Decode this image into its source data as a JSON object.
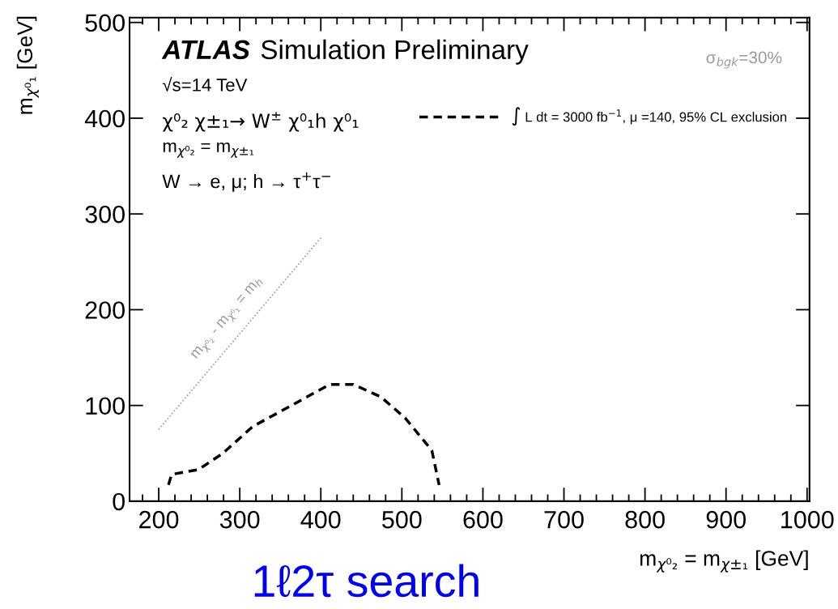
{
  "chart_data": {
    "type": "line",
    "xlabel": "m$_{χ⁰₂}$ = m$_{χ±₁}$ [GeV]",
    "ylabel": "m$_{χ⁰₁}$ [GeV]",
    "xlim": [
      164,
      1003
    ],
    "ylim": [
      0,
      505
    ],
    "xticks": [
      200,
      300,
      400,
      500,
      600,
      700,
      800,
      900,
      1000
    ],
    "yticks": [
      0,
      100,
      200,
      300,
      400,
      500
    ],
    "grid": false,
    "legend": "top right",
    "series": [
      {
        "name": "∫ L dt = 3000 fb$^{−1}$, μ =140, 95% CL exclusion",
        "color": "#000000",
        "line_style": "dashed",
        "x": [
          212,
          216,
          249,
          279,
          316,
          353,
          411,
          440,
          474,
          504,
          537,
          546
        ],
        "values": [
          17,
          28,
          33,
          50,
          78,
          95,
          122,
          122,
          109,
          87,
          53,
          17
        ]
      },
      {
        "color": "#999999",
        "line_style": "dotted",
        "x": [
          200,
          400
        ],
        "values": [
          75,
          275
        ]
      }
    ],
    "annotations": [
      "ATLAS",
      "Simulation Preliminary",
      "σ$_{bgk}$=30%",
      "√s=14 TeV",
      "χ⁰₂ χ±₁→ W$^{±}$ χ⁰₁h χ⁰₁",
      "m$_{χ⁰₂}$ = m$_{χ±₁}$",
      "W → e, μ; h → τ$^{+}$τ$^{−}$",
      "m$_{χ⁰₂}$ - m$_{χ⁰₁}$ = m$_{h}$",
      "1ℓ2τ search"
    ]
  }
}
